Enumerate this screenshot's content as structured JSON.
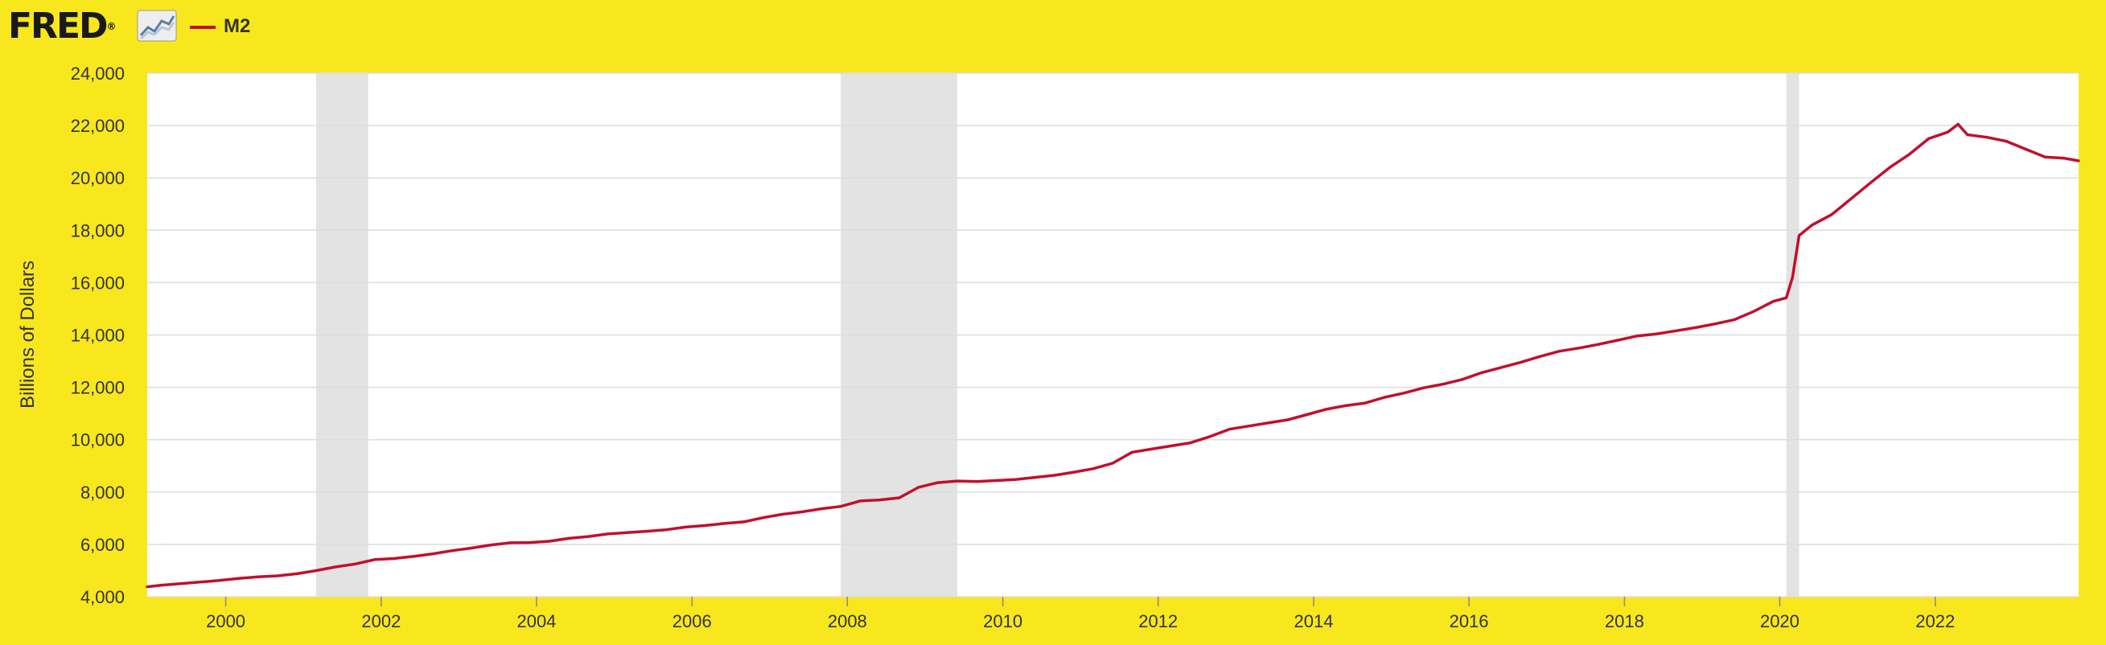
{
  "header": {
    "logo_text": "FRED",
    "logo_registered": "®",
    "logo_icon": "fred-chart-icon"
  },
  "colors": {
    "background": "#f8e71c",
    "plot_background": "#ffffff",
    "series": "#c0102e",
    "recession": "#e3e3e3",
    "grid": "#dddddd"
  },
  "chart_data": {
    "type": "line",
    "title": "",
    "xlabel": "",
    "ylabel": "Billions of Dollars",
    "ylim": [
      4000,
      24000
    ],
    "xlim": [
      "1998-12-28",
      "2023-11-06"
    ],
    "yticks": [
      4000,
      6000,
      8000,
      10000,
      12000,
      14000,
      16000,
      18000,
      20000,
      22000,
      24000
    ],
    "ytick_labels": [
      "4,000",
      "6,000",
      "8,000",
      "10,000",
      "12,000",
      "14,000",
      "16,000",
      "18,000",
      "20,000",
      "22,000",
      "24,000"
    ],
    "xticks": [
      "2000-01-01",
      "2002-01-01",
      "2004-01-01",
      "2006-01-01",
      "2008-01-01",
      "2010-01-01",
      "2012-01-01",
      "2014-01-01",
      "2016-01-01",
      "2018-01-01",
      "2020-01-01",
      "2022-01-01"
    ],
    "xtick_labels": [
      "2000",
      "2002",
      "2004",
      "2006",
      "2008",
      "2010",
      "2012",
      "2014",
      "2016",
      "2018",
      "2020",
      "2022"
    ],
    "grid": true,
    "legend_position": "top-left",
    "recessions": [
      {
        "start": "2001-03-01",
        "end": "2001-11-01"
      },
      {
        "start": "2007-12-01",
        "end": "2009-06-01"
      },
      {
        "start": "2020-02-01",
        "end": "2020-04-01"
      }
    ],
    "series": [
      {
        "name": "M2",
        "color": "#c0102e",
        "points": [
          [
            "1998-12-28",
            4380
          ],
          [
            "1999-03-01",
            4440
          ],
          [
            "1999-06-01",
            4500
          ],
          [
            "1999-09-01",
            4560
          ],
          [
            "1999-12-01",
            4620
          ],
          [
            "2000-03-01",
            4700
          ],
          [
            "2000-06-01",
            4760
          ],
          [
            "2000-09-01",
            4800
          ],
          [
            "2000-12-01",
            4880
          ],
          [
            "2001-03-01",
            5000
          ],
          [
            "2001-06-01",
            5140
          ],
          [
            "2001-09-01",
            5250
          ],
          [
            "2001-12-01",
            5420
          ],
          [
            "2002-03-01",
            5460
          ],
          [
            "2002-06-01",
            5540
          ],
          [
            "2002-09-01",
            5640
          ],
          [
            "2002-12-01",
            5760
          ],
          [
            "2003-03-01",
            5860
          ],
          [
            "2003-06-01",
            5980
          ],
          [
            "2003-09-01",
            6060
          ],
          [
            "2003-12-01",
            6070
          ],
          [
            "2004-03-01",
            6120
          ],
          [
            "2004-06-01",
            6230
          ],
          [
            "2004-09-01",
            6300
          ],
          [
            "2004-12-01",
            6400
          ],
          [
            "2005-03-01",
            6450
          ],
          [
            "2005-06-01",
            6500
          ],
          [
            "2005-09-01",
            6560
          ],
          [
            "2005-12-01",
            6660
          ],
          [
            "2006-03-01",
            6720
          ],
          [
            "2006-06-01",
            6800
          ],
          [
            "2006-09-01",
            6860
          ],
          [
            "2006-12-01",
            7020
          ],
          [
            "2007-03-01",
            7150
          ],
          [
            "2007-06-01",
            7240
          ],
          [
            "2007-09-01",
            7360
          ],
          [
            "2007-12-01",
            7450
          ],
          [
            "2008-03-01",
            7660
          ],
          [
            "2008-06-01",
            7700
          ],
          [
            "2008-09-01",
            7780
          ],
          [
            "2008-12-01",
            8180
          ],
          [
            "2009-03-01",
            8360
          ],
          [
            "2009-06-01",
            8420
          ],
          [
            "2009-09-01",
            8400
          ],
          [
            "2009-12-01",
            8440
          ],
          [
            "2010-03-01",
            8480
          ],
          [
            "2010-06-01",
            8560
          ],
          [
            "2010-09-01",
            8640
          ],
          [
            "2010-12-01",
            8760
          ],
          [
            "2011-03-01",
            8890
          ],
          [
            "2011-06-01",
            9100
          ],
          [
            "2011-09-01",
            9520
          ],
          [
            "2011-12-01",
            9640
          ],
          [
            "2012-03-01",
            9760
          ],
          [
            "2012-06-01",
            9880
          ],
          [
            "2012-09-01",
            10120
          ],
          [
            "2012-12-01",
            10400
          ],
          [
            "2013-03-01",
            10520
          ],
          [
            "2013-06-01",
            10640
          ],
          [
            "2013-09-01",
            10760
          ],
          [
            "2013-12-01",
            10960
          ],
          [
            "2014-03-01",
            11160
          ],
          [
            "2014-06-01",
            11300
          ],
          [
            "2014-09-01",
            11400
          ],
          [
            "2014-12-01",
            11620
          ],
          [
            "2015-03-01",
            11780
          ],
          [
            "2015-06-01",
            11980
          ],
          [
            "2015-09-01",
            12120
          ],
          [
            "2015-12-01",
            12300
          ],
          [
            "2016-03-01",
            12560
          ],
          [
            "2016-06-01",
            12760
          ],
          [
            "2016-09-01",
            12960
          ],
          [
            "2016-12-01",
            13180
          ],
          [
            "2017-03-01",
            13380
          ],
          [
            "2017-06-01",
            13500
          ],
          [
            "2017-09-01",
            13640
          ],
          [
            "2017-12-01",
            13800
          ],
          [
            "2018-03-01",
            13960
          ],
          [
            "2018-06-01",
            14040
          ],
          [
            "2018-09-01",
            14160
          ],
          [
            "2018-12-01",
            14280
          ],
          [
            "2019-03-01",
            14420
          ],
          [
            "2019-06-01",
            14580
          ],
          [
            "2019-09-01",
            14900
          ],
          [
            "2019-12-01",
            15280
          ],
          [
            "2020-02-01",
            15420
          ],
          [
            "2020-03-01",
            16200
          ],
          [
            "2020-04-01",
            17800
          ],
          [
            "2020-06-01",
            18200
          ],
          [
            "2020-09-01",
            18600
          ],
          [
            "2020-12-01",
            19200
          ],
          [
            "2021-03-01",
            19800
          ],
          [
            "2021-06-01",
            20400
          ],
          [
            "2021-09-01",
            20900
          ],
          [
            "2021-12-01",
            21500
          ],
          [
            "2022-03-01",
            21750
          ],
          [
            "2022-04-18",
            22050
          ],
          [
            "2022-06-01",
            21650
          ],
          [
            "2022-09-01",
            21550
          ],
          [
            "2022-12-01",
            21400
          ],
          [
            "2023-03-01",
            21100
          ],
          [
            "2023-06-01",
            20800
          ],
          [
            "2023-09-01",
            20750
          ],
          [
            "2023-11-06",
            20650
          ]
        ]
      }
    ]
  }
}
